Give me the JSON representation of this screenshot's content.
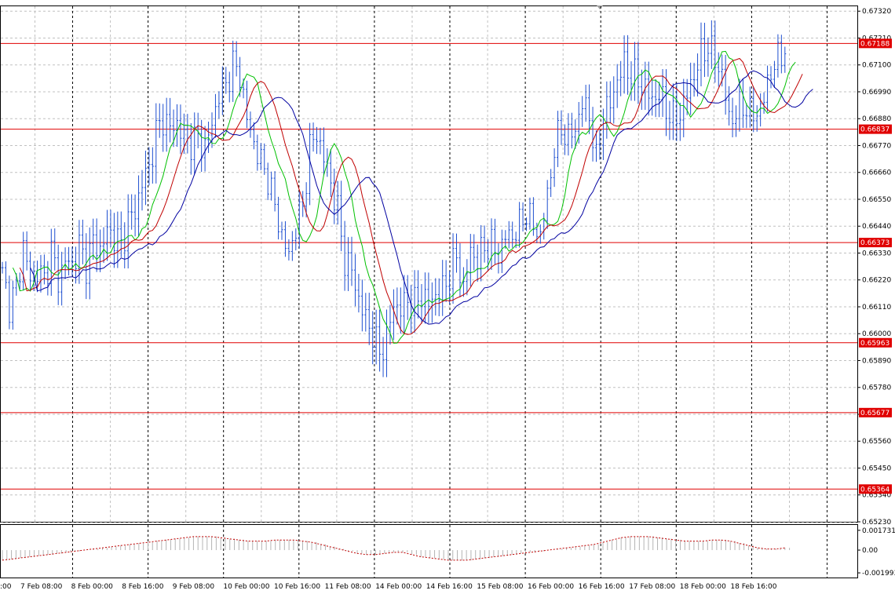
{
  "chart_data": [
    {
      "type": "candlestick",
      "instrument_note": "",
      "timeframe_note": "",
      "price_axis": {
        "ylim": [
          0.6523,
          0.6734
        ],
        "ticks": [
          "0.67320",
          "0.67210",
          "0.67100",
          "0.66990",
          "0.66880",
          "0.66770",
          "0.66660",
          "0.66550",
          "0.66440",
          "0.66330",
          "0.66220",
          "0.66110",
          "0.66000",
          "0.65890",
          "0.65780",
          "0.65670",
          "0.65560",
          "0.65450",
          "0.65340",
          "0.65230"
        ]
      },
      "time_axis": {
        "labels": [
          ":00",
          "7 Feb 08:00",
          "8 Feb 00:00",
          "8 Feb 16:00",
          "9 Feb 08:00",
          "10 Feb 00:00",
          "10 Feb 16:00",
          "11 Feb 08:00",
          "14 Feb 00:00",
          "14 Feb 16:00",
          "15 Feb 08:00",
          "16 Feb 00:00",
          "16 Feb 16:00",
          "17 Feb 08:00",
          "18 Feb 00:00",
          "18 Feb 16:00"
        ]
      },
      "horizontal_levels": [
        {
          "value": 0.67188,
          "label": "0.67188"
        },
        {
          "value": 0.66837,
          "label": "0.66837"
        },
        {
          "value": 0.66373,
          "label": "0.66373"
        },
        {
          "value": 0.65963,
          "label": "0.65963"
        },
        {
          "value": 0.65677,
          "label": "0.65677"
        },
        {
          "value": 0.65364,
          "label": "0.65364"
        }
      ],
      "close_path": [
        [
          0,
          0.6624
        ],
        [
          2,
          0.6612
        ],
        [
          4,
          0.6618
        ],
        [
          6,
          0.6636
        ],
        [
          8,
          0.6622
        ],
        [
          10,
          0.6626
        ],
        [
          12,
          0.6622
        ],
        [
          14,
          0.6634
        ],
        [
          16,
          0.6622
        ],
        [
          18,
          0.663
        ],
        [
          20,
          0.6628
        ],
        [
          22,
          0.6636
        ],
        [
          24,
          0.6628
        ],
        [
          26,
          0.6638
        ],
        [
          28,
          0.6634
        ],
        [
          30,
          0.6642
        ],
        [
          32,
          0.664
        ],
        [
          34,
          0.6636
        ],
        [
          36,
          0.6646
        ],
        [
          38,
          0.665
        ],
        [
          40,
          0.6662
        ],
        [
          42,
          0.6668
        ],
        [
          44,
          0.6682
        ],
        [
          46,
          0.6688
        ],
        [
          48,
          0.6684
        ],
        [
          50,
          0.6686
        ],
        [
          52,
          0.668
        ],
        [
          54,
          0.6678
        ],
        [
          56,
          0.668
        ],
        [
          58,
          0.6676
        ],
        [
          60,
          0.6686
        ],
        [
          62,
          0.6698
        ],
        [
          64,
          0.6702
        ],
        [
          66,
          0.671
        ],
        [
          68,
          0.6706
        ],
        [
          70,
          0.6688
        ],
        [
          72,
          0.6678
        ],
        [
          74,
          0.667
        ],
        [
          76,
          0.6664
        ],
        [
          78,
          0.6652
        ],
        [
          80,
          0.664
        ],
        [
          82,
          0.6632
        ],
        [
          84,
          0.6644
        ],
        [
          86,
          0.6652
        ],
        [
          88,
          0.6676
        ],
        [
          90,
          0.6682
        ],
        [
          92,
          0.6672
        ],
        [
          94,
          0.6662
        ],
        [
          96,
          0.665
        ],
        [
          98,
          0.663
        ],
        [
          100,
          0.6626
        ],
        [
          102,
          0.6614
        ],
        [
          104,
          0.6606
        ],
        [
          106,
          0.66
        ],
        [
          108,
          0.6592
        ],
        [
          110,
          0.6598
        ],
        [
          112,
          0.6612
        ],
        [
          114,
          0.661
        ],
        [
          116,
          0.6614
        ],
        [
          118,
          0.6612
        ],
        [
          120,
          0.6616
        ],
        [
          122,
          0.6612
        ],
        [
          124,
          0.6616
        ],
        [
          126,
          0.6618
        ],
        [
          128,
          0.6624
        ],
        [
          130,
          0.6632
        ],
        [
          132,
          0.6618
        ],
        [
          134,
          0.6634
        ],
        [
          136,
          0.663
        ],
        [
          138,
          0.6636
        ],
        [
          140,
          0.6636
        ],
        [
          142,
          0.6632
        ],
        [
          144,
          0.664
        ],
        [
          146,
          0.664
        ],
        [
          148,
          0.6644
        ],
        [
          150,
          0.665
        ],
        [
          152,
          0.6644
        ],
        [
          154,
          0.664
        ],
        [
          156,
          0.6656
        ],
        [
          158,
          0.6676
        ],
        [
          160,
          0.6684
        ],
        [
          162,
          0.668
        ],
        [
          164,
          0.6684
        ],
        [
          166,
          0.6694
        ],
        [
          168,
          0.669
        ],
        [
          170,
          0.667
        ],
        [
          172,
          0.669
        ],
        [
          174,
          0.6694
        ],
        [
          176,
          0.6704
        ],
        [
          178,
          0.671
        ],
        [
          180,
          0.6706
        ],
        [
          182,
          0.6704
        ],
        [
          184,
          0.67
        ],
        [
          186,
          0.6696
        ],
        [
          188,
          0.6698
        ],
        [
          190,
          0.6692
        ],
        [
          192,
          0.6688
        ],
        [
          194,
          0.669
        ],
        [
          196,
          0.6698
        ],
        [
          198,
          0.6706
        ],
        [
          200,
          0.6714
        ],
        [
          202,
          0.6718
        ],
        [
          204,
          0.6712
        ],
        [
          206,
          0.6706
        ],
        [
          208,
          0.6688
        ],
        [
          210,
          0.669
        ],
        [
          212,
          0.6694
        ],
        [
          214,
          0.669
        ],
        [
          216,
          0.669
        ],
        [
          218,
          0.6696
        ],
        [
          220,
          0.6708
        ],
        [
          222,
          0.6712
        ],
        [
          224,
          0.6717
        ]
      ],
      "ma_fast_color": "#00c000",
      "ma_mid_color": "#c00000",
      "ma_slow_color": "#0000a0",
      "oscillator": {
        "ticks": [
          "0.001731",
          "0.00",
          "-0.001993"
        ],
        "ylim": [
          -0.0024,
          0.0022
        ],
        "values": [
          -0.0009,
          -0.0008,
          -0.0007,
          -0.0006,
          -0.0005,
          -0.0004,
          -0.0003,
          -0.0002,
          -0.0001,
          0.0,
          0.0001,
          0.0002,
          0.0003,
          0.0004,
          0.0005,
          0.0006,
          0.0007,
          0.0008,
          0.0009,
          0.001,
          0.0011,
          0.0012,
          0.0012,
          0.0012,
          0.0011,
          0.001,
          0.0009,
          0.0008,
          0.0008,
          0.0008,
          0.0009,
          0.0009,
          0.0009,
          0.0008,
          0.0007,
          0.0005,
          0.0003,
          0.0001,
          -0.0001,
          -0.0003,
          -0.0004,
          -0.0004,
          -0.0003,
          -0.0002,
          -0.0002,
          -0.0004,
          -0.0006,
          -0.0007,
          -0.0008,
          -0.0009,
          -0.0009,
          -0.0009,
          -0.0008,
          -0.0007,
          -0.0006,
          -0.0005,
          -0.0004,
          -0.0003,
          -0.0002,
          -0.0001,
          0.0,
          0.0001,
          0.0002,
          0.0003,
          0.0004,
          0.0005,
          0.0007,
          0.0009,
          0.0011,
          0.0012,
          0.0012,
          0.0012,
          0.0011,
          0.001,
          0.0009,
          0.0008,
          0.0008,
          0.0008,
          0.0009,
          0.0009,
          0.0008,
          0.0006,
          0.0004,
          0.0002,
          0.0001,
          0.0001,
          0.0002
        ],
        "line_color": "#c00000",
        "hist_color": "#b4b4b4"
      }
    }
  ],
  "colors": {
    "bar": "#1e4fd0",
    "level": "#e00000",
    "grid": "#c0c0c0",
    "vgrid": "#000000"
  }
}
